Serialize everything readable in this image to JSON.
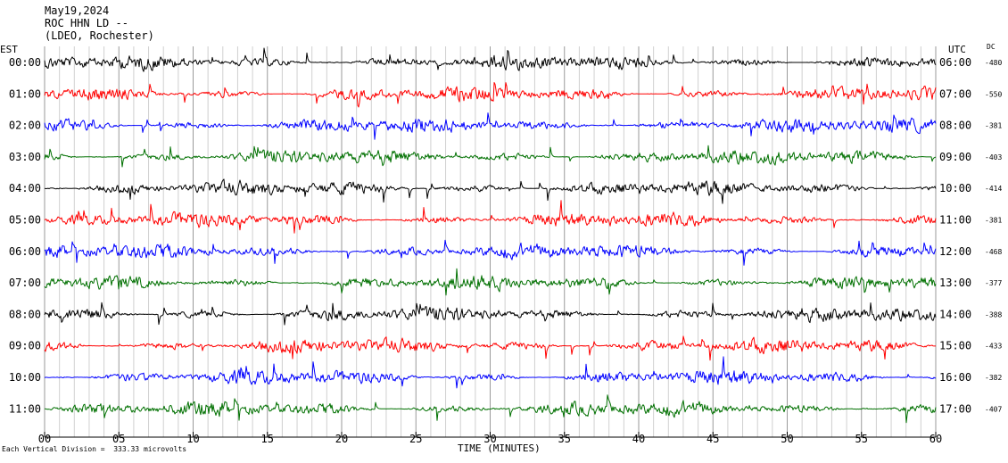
{
  "header": {
    "date": "May19,2024",
    "station": "ROC HHN LD --",
    "network": "(LDEO, Rochester)"
  },
  "labels": {
    "left_tz": "EST",
    "right_tz": "UTC",
    "dc_label": "DC",
    "footer": "Each Vertical Division =  333.33 microvolts",
    "xlabel": "TIME (MINUTES)"
  },
  "chart_data": {
    "type": "line",
    "title": "",
    "xlabel": "TIME (MINUTES)",
    "xlim": [
      0,
      60
    ],
    "x_ticks": [
      "00",
      "05",
      "10",
      "15",
      "20",
      "25",
      "30",
      "35",
      "40",
      "45",
      "50",
      "55",
      "60"
    ],
    "grid": true,
    "colors": [
      "#000000",
      "#ff0000",
      "#0000ff",
      "#007000"
    ],
    "traces": [
      {
        "est": "00:00",
        "utc": "06:00",
        "dc": "-480",
        "color": "#000000"
      },
      {
        "est": "01:00",
        "utc": "07:00",
        "dc": "-550",
        "color": "#ff0000"
      },
      {
        "est": "02:00",
        "utc": "08:00",
        "dc": "-381",
        "color": "#0000ff"
      },
      {
        "est": "03:00",
        "utc": "09:00",
        "dc": "-403",
        "color": "#007000"
      },
      {
        "est": "04:00",
        "utc": "10:00",
        "dc": "-414",
        "color": "#000000"
      },
      {
        "est": "05:00",
        "utc": "11:00",
        "dc": "-381",
        "color": "#ff0000"
      },
      {
        "est": "06:00",
        "utc": "12:00",
        "dc": "-468",
        "color": "#0000ff"
      },
      {
        "est": "07:00",
        "utc": "13:00",
        "dc": "-377",
        "color": "#007000"
      },
      {
        "est": "08:00",
        "utc": "14:00",
        "dc": "-388",
        "color": "#000000"
      },
      {
        "est": "09:00",
        "utc": "15:00",
        "dc": "-433",
        "color": "#ff0000"
      },
      {
        "est": "10:00",
        "utc": "16:00",
        "dc": "-382",
        "color": "#0000ff"
      },
      {
        "est": "11:00",
        "utc": "17:00",
        "dc": "-407",
        "color": "#007000"
      }
    ]
  }
}
